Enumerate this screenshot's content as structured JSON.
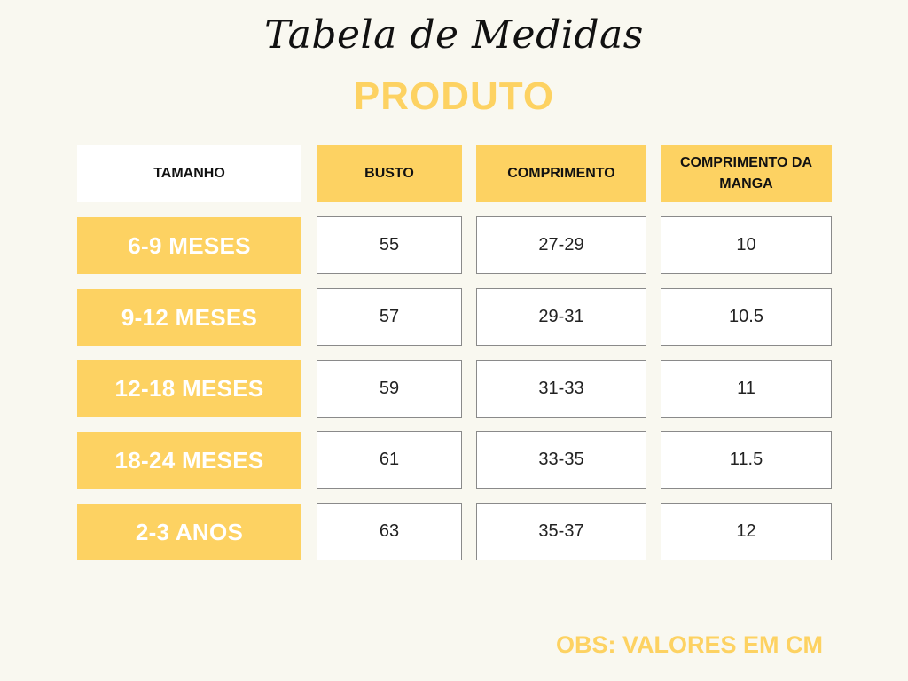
{
  "title": "Tabela de Medidas",
  "subtitle": "PRODUTO",
  "table": {
    "headers": [
      "TAMANHO",
      "BUSTO",
      "COMPRIMENTO",
      "COMPRIMENTO DA MANGA"
    ],
    "rows": [
      {
        "size": "6-9 MESES",
        "busto": "55",
        "comprimento": "27-29",
        "manga": "10"
      },
      {
        "size": "9-12 MESES",
        "busto": "57",
        "comprimento": "29-31",
        "manga": "10.5"
      },
      {
        "size": "12-18 MESES",
        "busto": "59",
        "comprimento": "31-33",
        "manga": "11"
      },
      {
        "size": "18-24 MESES",
        "busto": "61",
        "comprimento": "33-35",
        "manga": "11.5"
      },
      {
        "size": "2-3 ANOS",
        "busto": "63",
        "comprimento": "35-37",
        "manga": "12"
      }
    ]
  },
  "note": "OBS: VALORES EM CM",
  "colors": {
    "accent": "#fdd262",
    "background": "#f9f8f0",
    "cell_border": "#8a8a8a"
  }
}
